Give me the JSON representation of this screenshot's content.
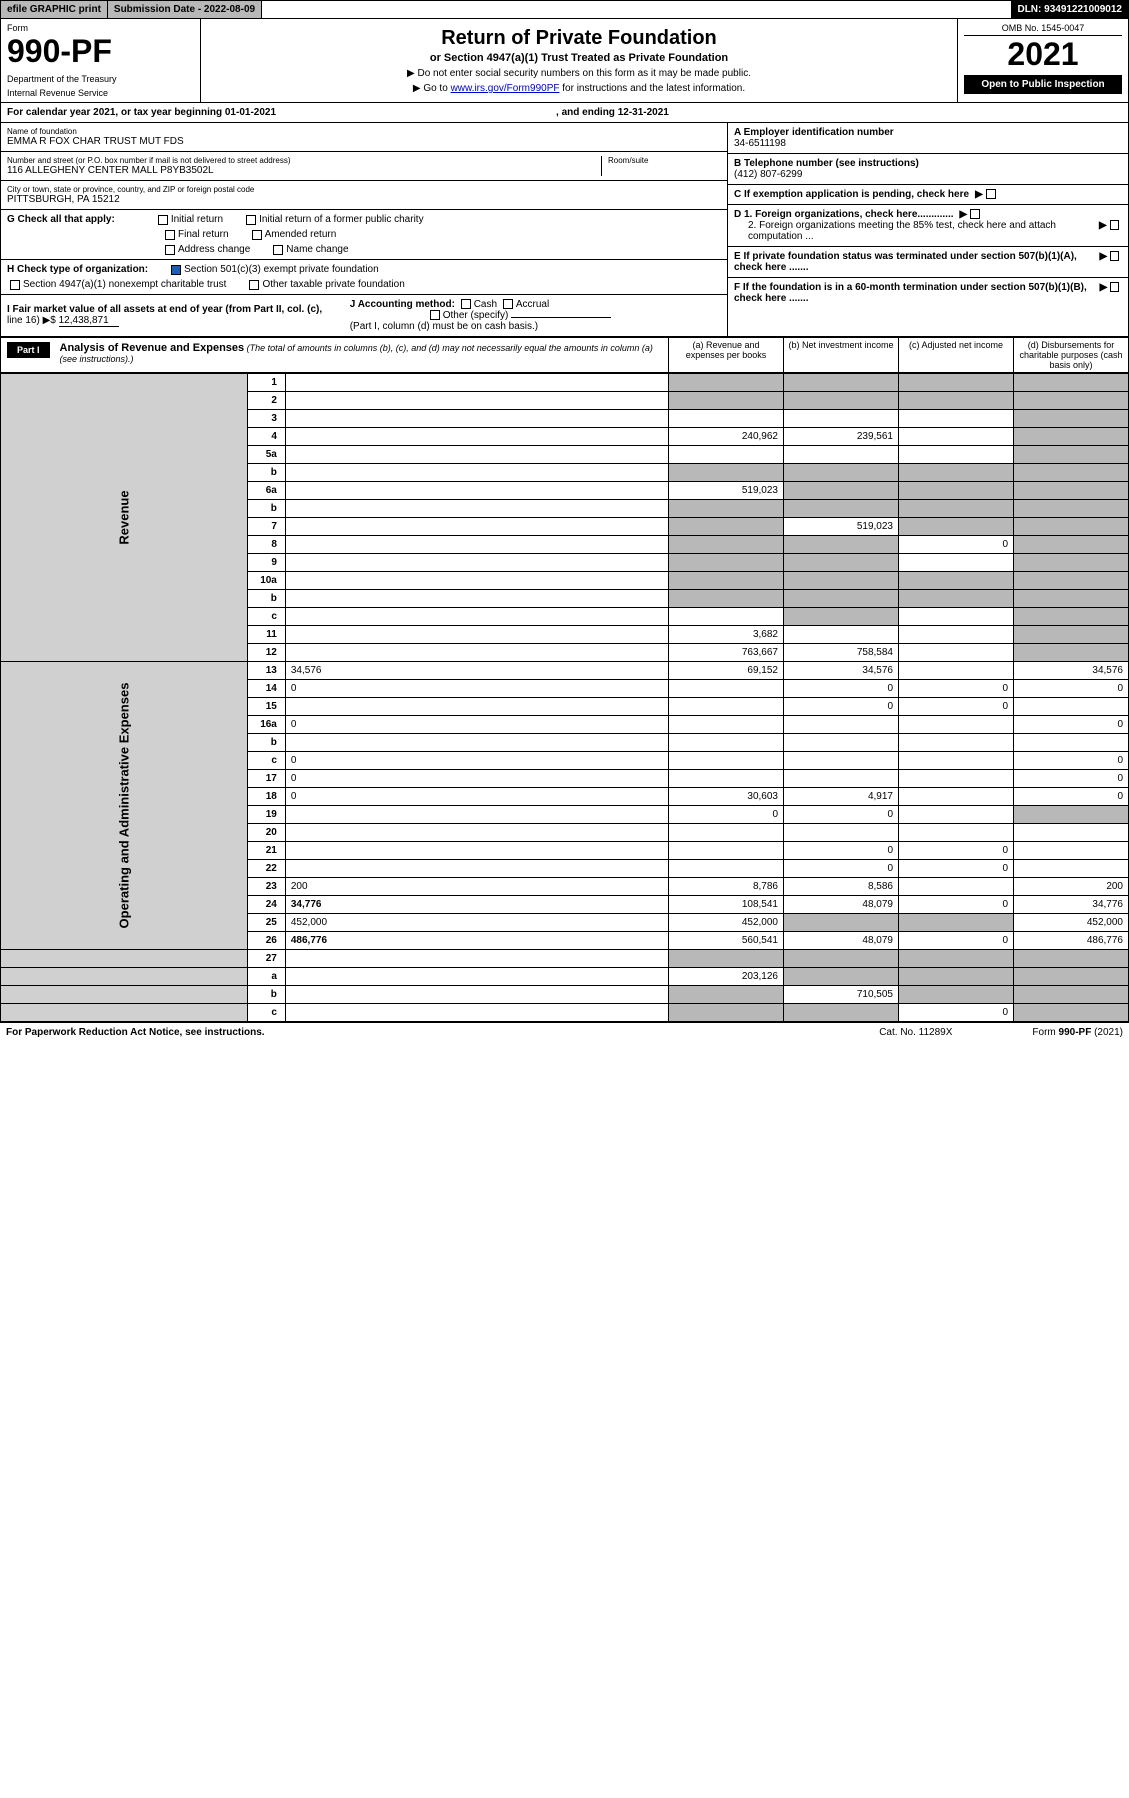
{
  "topbar": {
    "efile": "efile GRAPHIC print",
    "subdate_label": "Submission Date - 2022-08-09",
    "dln": "DLN: 93491221009012"
  },
  "header": {
    "form_label": "Form",
    "form_number": "990-PF",
    "dept1": "Department of the Treasury",
    "dept2": "Internal Revenue Service",
    "title": "Return of Private Foundation",
    "subtitle": "or Section 4947(a)(1) Trust Treated as Private Foundation",
    "note1": "▶ Do not enter social security numbers on this form as it may be made public.",
    "note2_pre": "▶ Go to ",
    "note2_link": "www.irs.gov/Form990PF",
    "note2_post": " for instructions and the latest information.",
    "omb": "OMB No. 1545-0047",
    "year": "2021",
    "open_public": "Open to Public Inspection"
  },
  "cal": {
    "text1": "For calendar year 2021, or tax year beginning 01-01-2021",
    "text2": ", and ending 12-31-2021"
  },
  "info": {
    "name_label": "Name of foundation",
    "name": "EMMA R FOX CHAR TRUST MUT FDS",
    "addr_label": "Number and street (or P.O. box number if mail is not delivered to street address)",
    "addr": "116 ALLEGHENY CENTER MALL P8YB3502L",
    "room_label": "Room/suite",
    "city_label": "City or town, state or province, country, and ZIP or foreign postal code",
    "city": "PITTSBURGH, PA  15212",
    "a_label": "A Employer identification number",
    "a_val": "34-6511198",
    "b_label": "B Telephone number (see instructions)",
    "b_val": "(412) 807-6299",
    "c_label": "C If exemption application is pending, check here",
    "d1_label": "D 1. Foreign organizations, check here.............",
    "d2_label": "2. Foreign organizations meeting the 85% test, check here and attach computation ...",
    "e_label": "E  If private foundation status was terminated under section 507(b)(1)(A), check here .......",
    "f_label": "F  If the foundation is in a 60-month termination under section 507(b)(1)(B), check here ......."
  },
  "checks": {
    "g_label": "G Check all that apply:",
    "g1": "Initial return",
    "g2": "Initial return of a former public charity",
    "g3": "Final return",
    "g4": "Amended return",
    "g5": "Address change",
    "g6": "Name change",
    "h_label": "H Check type of organization:",
    "h1": "Section 501(c)(3) exempt private foundation",
    "h2": "Section 4947(a)(1) nonexempt charitable trust",
    "h3": "Other taxable private foundation",
    "i_label": "I Fair market value of all assets at end of year (from Part II, col. (c),",
    "i_line": "line 16) ▶$",
    "i_val": "12,438,871",
    "j_label": "J Accounting method:",
    "j1": "Cash",
    "j2": "Accrual",
    "j3": "Other (specify)",
    "j_note": "(Part I, column (d) must be on cash basis.)"
  },
  "part1": {
    "label": "Part I",
    "title": "Analysis of Revenue and Expenses",
    "title_note": "(The total of amounts in columns (b), (c), and (d) may not necessarily equal the amounts in column (a) (see instructions).)",
    "col_a": "(a)   Revenue and expenses per books",
    "col_b": "(b)   Net investment income",
    "col_c": "(c)   Adjusted net income",
    "col_d": "(d)   Disbursements for charitable purposes (cash basis only)"
  },
  "sides": {
    "revenue": "Revenue",
    "expenses": "Operating and Administrative Expenses"
  },
  "rows": [
    {
      "n": "1",
      "d": "",
      "a": "",
      "b": "",
      "c": "",
      "sa": true,
      "sb": true,
      "sc": true,
      "sd": true
    },
    {
      "n": "2",
      "d": "",
      "a": "",
      "b": "",
      "c": "",
      "sa": true,
      "sb": true,
      "sc": true,
      "sd": true
    },
    {
      "n": "3",
      "d": "",
      "a": "",
      "b": "",
      "c": "",
      "sd": true
    },
    {
      "n": "4",
      "d": "",
      "a": "240,962",
      "b": "239,561",
      "c": "",
      "sd": true
    },
    {
      "n": "5a",
      "d": "",
      "a": "",
      "b": "",
      "c": "",
      "sd": true
    },
    {
      "n": "b",
      "d": "",
      "a": "",
      "b": "",
      "c": "",
      "sa": true,
      "sb": true,
      "sc": true,
      "sd": true
    },
    {
      "n": "6a",
      "d": "",
      "a": "519,023",
      "b": "",
      "c": "",
      "sb": true,
      "sc": true,
      "sd": true
    },
    {
      "n": "b",
      "d": "",
      "a": "",
      "b": "",
      "c": "",
      "sa": true,
      "sb": true,
      "sc": true,
      "sd": true
    },
    {
      "n": "7",
      "d": "",
      "a": "",
      "b": "519,023",
      "c": "",
      "sa": true,
      "sc": true,
      "sd": true
    },
    {
      "n": "8",
      "d": "",
      "a": "",
      "b": "",
      "c": "0",
      "sa": true,
      "sb": true,
      "sd": true
    },
    {
      "n": "9",
      "d": "",
      "a": "",
      "b": "",
      "c": "",
      "sa": true,
      "sb": true,
      "sd": true
    },
    {
      "n": "10a",
      "d": "",
      "a": "",
      "b": "",
      "c": "",
      "sa": true,
      "sb": true,
      "sc": true,
      "sd": true
    },
    {
      "n": "b",
      "d": "",
      "a": "",
      "b": "",
      "c": "",
      "sa": true,
      "sb": true,
      "sc": true,
      "sd": true
    },
    {
      "n": "c",
      "d": "",
      "a": "",
      "b": "",
      "c": "",
      "sb": true,
      "sd": true
    },
    {
      "n": "11",
      "d": "",
      "a": "3,682",
      "b": "",
      "c": "",
      "sd": true
    },
    {
      "n": "12",
      "d": "",
      "a": "763,667",
      "b": "758,584",
      "c": "",
      "bold": true,
      "sd": true
    }
  ],
  "rows2": [
    {
      "n": "13",
      "d": "34,576",
      "a": "69,152",
      "b": "34,576",
      "c": ""
    },
    {
      "n": "14",
      "d": "0",
      "a": "",
      "b": "0",
      "c": "0"
    },
    {
      "n": "15",
      "d": "",
      "a": "",
      "b": "0",
      "c": "0"
    },
    {
      "n": "16a",
      "d": "0",
      "a": "",
      "b": "",
      "c": ""
    },
    {
      "n": "b",
      "d": "",
      "a": "",
      "b": "",
      "c": ""
    },
    {
      "n": "c",
      "d": "0",
      "a": "",
      "b": "",
      "c": ""
    },
    {
      "n": "17",
      "d": "0",
      "a": "",
      "b": "",
      "c": ""
    },
    {
      "n": "18",
      "d": "0",
      "a": "30,603",
      "b": "4,917",
      "c": ""
    },
    {
      "n": "19",
      "d": "",
      "a": "0",
      "b": "0",
      "c": "",
      "sd": true
    },
    {
      "n": "20",
      "d": "",
      "a": "",
      "b": "",
      "c": ""
    },
    {
      "n": "21",
      "d": "",
      "a": "",
      "b": "0",
      "c": "0"
    },
    {
      "n": "22",
      "d": "",
      "a": "",
      "b": "0",
      "c": "0"
    },
    {
      "n": "23",
      "d": "200",
      "a": "8,786",
      "b": "8,586",
      "c": ""
    },
    {
      "n": "24",
      "d": "34,776",
      "a": "108,541",
      "b": "48,079",
      "c": "0",
      "bold": true
    },
    {
      "n": "25",
      "d": "452,000",
      "a": "452,000",
      "b": "",
      "c": "",
      "sb": true,
      "sc": true
    },
    {
      "n": "26",
      "d": "486,776",
      "a": "560,541",
      "b": "48,079",
      "c": "0",
      "bold": true
    }
  ],
  "rows3": [
    {
      "n": "27",
      "d": "",
      "a": "",
      "b": "",
      "c": "",
      "sa": true,
      "sb": true,
      "sc": true,
      "sd": true
    },
    {
      "n": "a",
      "d": "",
      "a": "203,126",
      "b": "",
      "c": "",
      "bold": true,
      "sb": true,
      "sc": true,
      "sd": true
    },
    {
      "n": "b",
      "d": "",
      "a": "",
      "b": "710,505",
      "c": "",
      "bold": true,
      "sa": true,
      "sc": true,
      "sd": true
    },
    {
      "n": "c",
      "d": "",
      "a": "",
      "b": "",
      "c": "0",
      "bold": true,
      "sa": true,
      "sb": true,
      "sd": true
    }
  ],
  "footer": {
    "left": "For Paperwork Reduction Act Notice, see instructions.",
    "center": "Cat. No. 11289X",
    "right": "Form 990-PF (2021)"
  }
}
